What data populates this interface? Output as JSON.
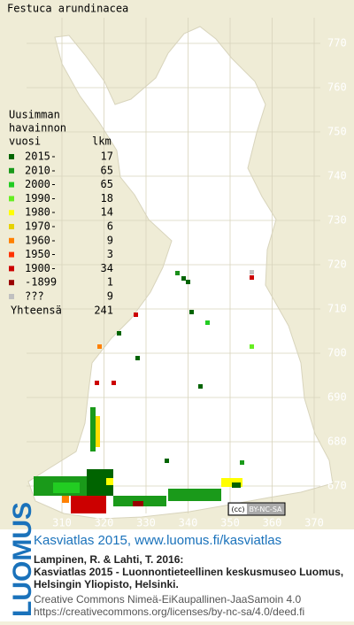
{
  "title": "Festuca arundinacea",
  "legend": {
    "heading": [
      "Uusimman",
      "havainnon",
      "vuosi"
    ],
    "count_heading": "lkm",
    "rows": [
      {
        "label": "2015-",
        "count": 17,
        "color": "#006400"
      },
      {
        "label": "2010-",
        "count": 65,
        "color": "#1a9a1a"
      },
      {
        "label": "2000-",
        "count": 65,
        "color": "#22cc22"
      },
      {
        "label": "1990-",
        "count": 18,
        "color": "#66ee22"
      },
      {
        "label": "1980-",
        "count": 14,
        "color": "#ffff00"
      },
      {
        "label": "1970-",
        "count": 6,
        "color": "#e6d200"
      },
      {
        "label": "1960-",
        "count": 9,
        "color": "#ff8000"
      },
      {
        "label": "1950-",
        "count": 3,
        "color": "#ff3300"
      },
      {
        "label": "1900-",
        "count": 34,
        "color": "#cc0000"
      },
      {
        "label": "-1899",
        "count": 1,
        "color": "#990000"
      },
      {
        "label": "???",
        "count": 9,
        "color": "#c0c0c0"
      }
    ],
    "total_label": "Yhteensä",
    "total": 241
  },
  "axes": {
    "y_ticks": [
      770,
      760,
      750,
      740,
      730,
      720,
      710,
      700,
      690,
      680,
      670
    ],
    "x_ticks": [
      310,
      320,
      330,
      340,
      350,
      360,
      370
    ]
  },
  "license_badge": {
    "mark": "(cc)",
    "terms": "BY-NC-SA"
  },
  "footer": {
    "brand": "LUOMUS",
    "link": "Kasviatlas 2015, www.luomus.fi/kasviatlas",
    "citation": [
      "Lampinen, R. & Lahti, T. 2016:",
      "Kasviatlas 2015 - Luonnontieteellinen keskusmuseo Luomus,",
      "Helsingin Yliopisto, Helsinki."
    ],
    "license": [
      "Creative Commons Nimeä-EiKaupallinen-JaaSamoin 4.0",
      "https://creativecommons.org/licenses/by-nc-sa/4.0/deed.fi"
    ]
  }
}
